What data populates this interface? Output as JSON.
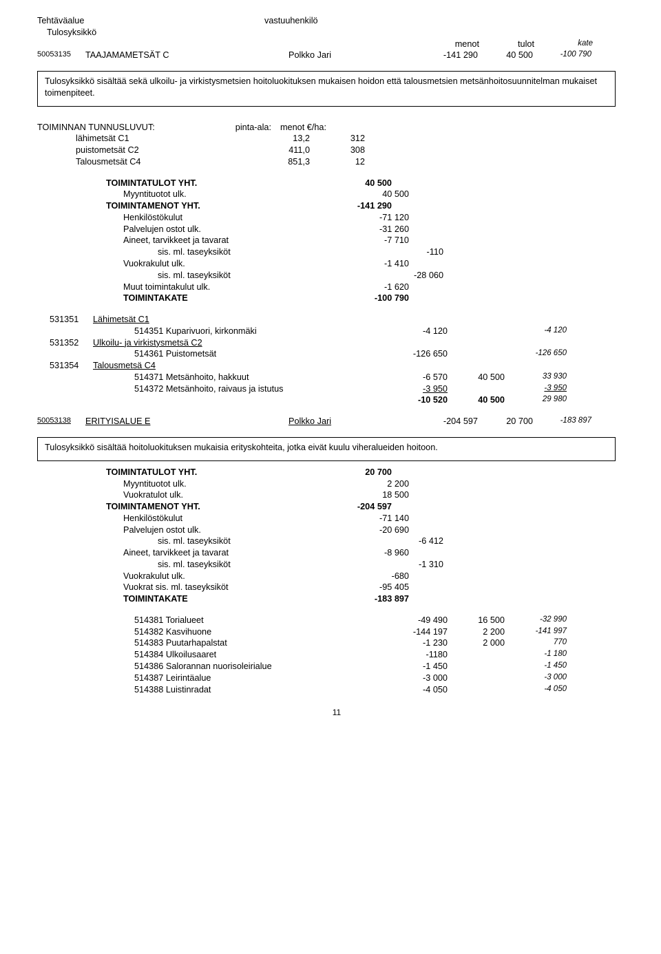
{
  "header": {
    "left1": "Tehtäväalue",
    "left2": "Tulosyksikkö",
    "right": "vastuuhenkilö"
  },
  "cols": {
    "menot": "menot",
    "tulot": "tulot",
    "kate": "kate"
  },
  "unit1": {
    "code": "50053135",
    "name": "TAAJAMAMETSÄT C",
    "resp": "Polkko Jari",
    "menot": "-141 290",
    "tulot": "40 500",
    "kate": "-100 790",
    "desc": "Tulosyksikkö sisältää sekä ulkoilu- ja virkistysmetsien hoitoluokituksen mukaisen hoidon että talousmetsien metsänhoitosuunnitelman mukaiset toimenpiteet."
  },
  "tun": {
    "title": "TOIMINNAN TUNNUSLUVUT:",
    "h1": "pinta-ala:",
    "h2": "menot €/ha:",
    "rows": [
      {
        "l": "lähimetsät C1",
        "a": "13,2",
        "b": "312"
      },
      {
        "l": "puistometsät C2",
        "a": "411,0",
        "b": "308"
      },
      {
        "l": "Talousmetsät C4",
        "a": "851,3",
        "b": "12"
      }
    ]
  },
  "fin1": [
    {
      "l": "TOIMINTATULOT YHT.",
      "v": "40 500",
      "bold": true,
      "ind": 1
    },
    {
      "l": "Myyntituotot ulk.",
      "v": "40 500",
      "ind": 2
    },
    {
      "l": "TOIMINTAMENOT YHT.",
      "v": "-141 290",
      "bold": true,
      "ind": 1
    },
    {
      "l": "Henkilöstökulut",
      "v": "-71 120",
      "ind": 2
    },
    {
      "l": "Palvelujen ostot ulk.",
      "v": "-31 260",
      "ind": 2
    },
    {
      "l": "Aineet, tarvikkeet ja tavarat",
      "v": "-7 710",
      "ind": 2
    },
    {
      "l": "sis. ml. taseyksiköt",
      "v": "-110",
      "ind": 3
    },
    {
      "l": "Vuokrakulut ulk.",
      "v": "-1 410",
      "ind": 2
    },
    {
      "l": "sis. ml. taseyksiköt",
      "v": "-28 060",
      "ind": 3
    },
    {
      "l": "Muut toimintakulut ulk.",
      "v": "-1 620",
      "ind": 2
    },
    {
      "l": "TOIMINTAKATE",
      "v": "-100 790",
      "bold": true,
      "ind": 2
    }
  ],
  "det1": {
    "groups": [
      {
        "code": "531351",
        "title": "Lähimetsät C1",
        "rows": [
          {
            "code": "514351",
            "name": "Kuparivuori, kirkonmäki",
            "m": "-4 120",
            "t": "",
            "k": "-4 120"
          }
        ]
      },
      {
        "code": "531352",
        "title": "Ulkoilu- ja virkistysmetsä C2",
        "rows": [
          {
            "code": "514361",
            "name": "Puistometsät",
            "m": "-126 650",
            "t": "",
            "k": "-126 650"
          }
        ]
      },
      {
        "code": "531354",
        "title": "Talousmetsä C4",
        "rows": [
          {
            "code": "514371",
            "name": "Metsänhoito, hakkuut",
            "m": "-6 570",
            "t": "40 500",
            "k": "33 930"
          },
          {
            "code": "514372",
            "name": "Metsänhoito, raivaus ja istutus",
            "m": "-3 950",
            "t": "",
            "k": "-3 950",
            "sumrow": true
          }
        ]
      }
    ],
    "sum": {
      "m": "-10 520",
      "t": "40 500",
      "k": "29 980"
    }
  },
  "unit2": {
    "code": "50053138",
    "name": "ERITYISALUE E",
    "resp": "Polkko Jari",
    "menot": "-204 597",
    "tulot": "20 700",
    "kate": "-183 897",
    "desc": "Tulosyksikkö sisältää hoitoluokituksen mukaisia erityskohteita, jotka eivät kuulu viheralueiden hoitoon."
  },
  "fin2": [
    {
      "l": "TOIMINTATULOT YHT.",
      "v": "20 700",
      "bold": true,
      "ind": 1
    },
    {
      "l": "Myyntituotot ulk.",
      "v": "2 200",
      "ind": 2
    },
    {
      "l": "Vuokratulot ulk.",
      "v": "18 500",
      "ind": 2
    },
    {
      "l": "TOIMINTAMENOT YHT.",
      "v": "-204 597",
      "bold": true,
      "ind": 1
    },
    {
      "l": "Henkilöstökulut",
      "v": "-71 140",
      "ind": 2
    },
    {
      "l": "Palvelujen ostot ulk.",
      "v": "-20 690",
      "ind": 2
    },
    {
      "l": "sis. ml. taseyksiköt",
      "v": "-6 412",
      "ind": 3
    },
    {
      "l": "Aineet, tarvikkeet ja tavarat",
      "v": "-8 960",
      "ind": 2
    },
    {
      "l": "sis. ml. taseyksiköt",
      "v": "-1 310",
      "ind": 3
    },
    {
      "l": "Vuokrakulut ulk.",
      "v": "-680",
      "ind": 2
    },
    {
      "l": "Vuokrat sis. ml. taseyksiköt",
      "v": "-95 405",
      "ind": 2
    },
    {
      "l": "TOIMINTAKATE",
      "v": "-183 897",
      "bold": true,
      "ind": 2
    }
  ],
  "det2": [
    {
      "code": "514381",
      "name": "Torialueet",
      "m": "-49 490",
      "t": "16 500",
      "k": "-32 990"
    },
    {
      "code": "514382",
      "name": "Kasvihuone",
      "m": "-144 197",
      "t": "2 200",
      "k": "-141 997"
    },
    {
      "code": "514383",
      "name": "Puutarhapalstat",
      "m": "-1 230",
      "t": "2 000",
      "k": "770"
    },
    {
      "code": "514384",
      "name": "Ulkoilusaaret",
      "m": "-1180",
      "t": "",
      "k": "-1 180"
    },
    {
      "code": "514386",
      "name": "Salorannan nuorisoleirialue",
      "m": "-1 450",
      "t": "",
      "k": "-1 450"
    },
    {
      "code": "514387",
      "name": "Leirintäalue",
      "m": "-3 000",
      "t": "",
      "k": "-3 000"
    },
    {
      "code": "514388",
      "name": "Luistinradat",
      "m": "-4 050",
      "t": "",
      "k": "-4 050"
    }
  ],
  "page": "11"
}
